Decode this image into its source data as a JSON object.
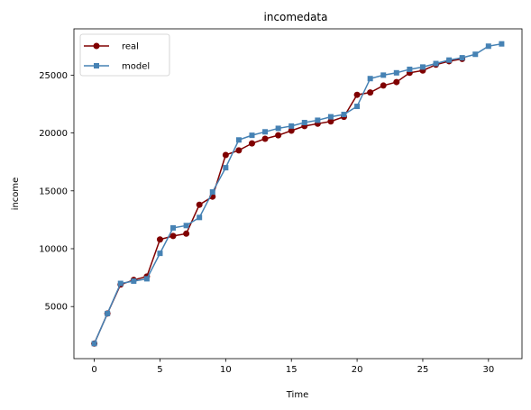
{
  "chart_data": {
    "type": "line",
    "title": "incomedata",
    "xlabel": "Time",
    "ylabel": "income",
    "xlim": [
      -1.55,
      32.55
    ],
    "ylim": [
      500,
      29000
    ],
    "xticks": [
      0,
      5,
      10,
      15,
      20,
      25,
      30
    ],
    "yticks": [
      5000,
      10000,
      15000,
      20000,
      25000
    ],
    "grid": false,
    "legend_position": "top-left",
    "series": [
      {
        "name": "real",
        "color": "#800000",
        "marker": "circle",
        "x": [
          0,
          1,
          2,
          3,
          4,
          5,
          6,
          7,
          8,
          9,
          10,
          11,
          12,
          13,
          14,
          15,
          16,
          17,
          18,
          19,
          20,
          21,
          22,
          23,
          24,
          25,
          26,
          27,
          28
        ],
        "y": [
          1800,
          4400,
          6900,
          7300,
          7600,
          10800,
          11100,
          11300,
          13800,
          14500,
          18100,
          18500,
          19100,
          19500,
          19800,
          20200,
          20600,
          20800,
          21000,
          21400,
          23300,
          23500,
          24100,
          24400,
          25200,
          25400,
          25900,
          26200,
          26400
        ]
      },
      {
        "name": "model",
        "color": "#4682B4",
        "marker": "square",
        "x": [
          0,
          1,
          2,
          3,
          4,
          5,
          6,
          7,
          8,
          9,
          10,
          11,
          12,
          13,
          14,
          15,
          16,
          17,
          18,
          19,
          20,
          21,
          22,
          23,
          24,
          25,
          26,
          27,
          28,
          29,
          30,
          31
        ],
        "y": [
          1800,
          4400,
          7000,
          7200,
          7400,
          9600,
          11800,
          12000,
          12700,
          14900,
          17000,
          19400,
          19800,
          20100,
          20400,
          20600,
          20900,
          21100,
          21400,
          21600,
          22300,
          24700,
          25000,
          25200,
          25500,
          25700,
          26000,
          26300,
          26500,
          26800,
          27500,
          27700
        ]
      }
    ]
  }
}
